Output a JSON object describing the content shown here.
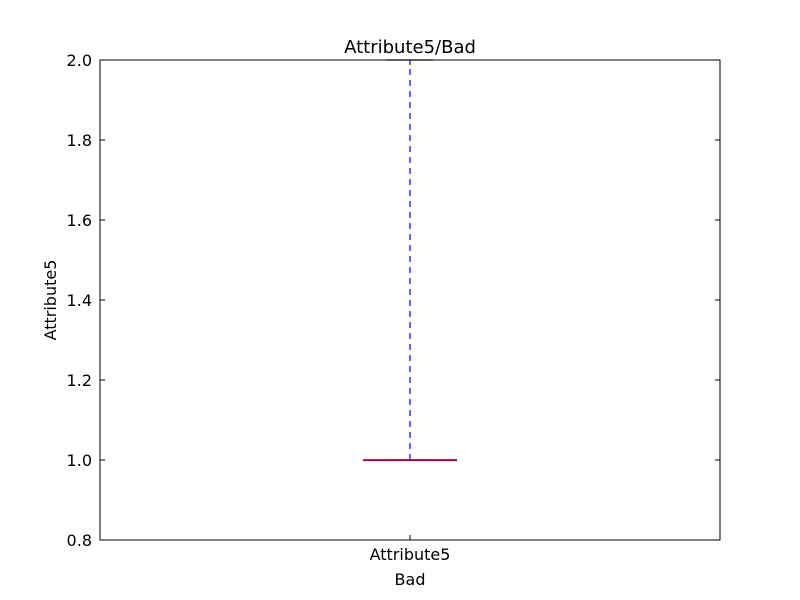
{
  "chart_data": {
    "type": "box",
    "title": "Attribute5/Bad",
    "xlabel": "Bad",
    "ylabel": "Attribute5",
    "categories": [
      "Attribute5"
    ],
    "ylim": [
      0.8,
      2.0
    ],
    "yticks": [
      "0.8",
      "1.0",
      "1.2",
      "1.4",
      "1.6",
      "1.8",
      "2.0"
    ],
    "boxes": [
      {
        "name": "Attribute5",
        "min": 1.0,
        "q1": 1.0,
        "median": 1.0,
        "q3": 1.0,
        "max": 2.0
      }
    ],
    "grid": false,
    "colors": {
      "box": "#0000ff",
      "whisker": "#0000ff",
      "median": "#cc0000",
      "axes": "#000000"
    }
  }
}
